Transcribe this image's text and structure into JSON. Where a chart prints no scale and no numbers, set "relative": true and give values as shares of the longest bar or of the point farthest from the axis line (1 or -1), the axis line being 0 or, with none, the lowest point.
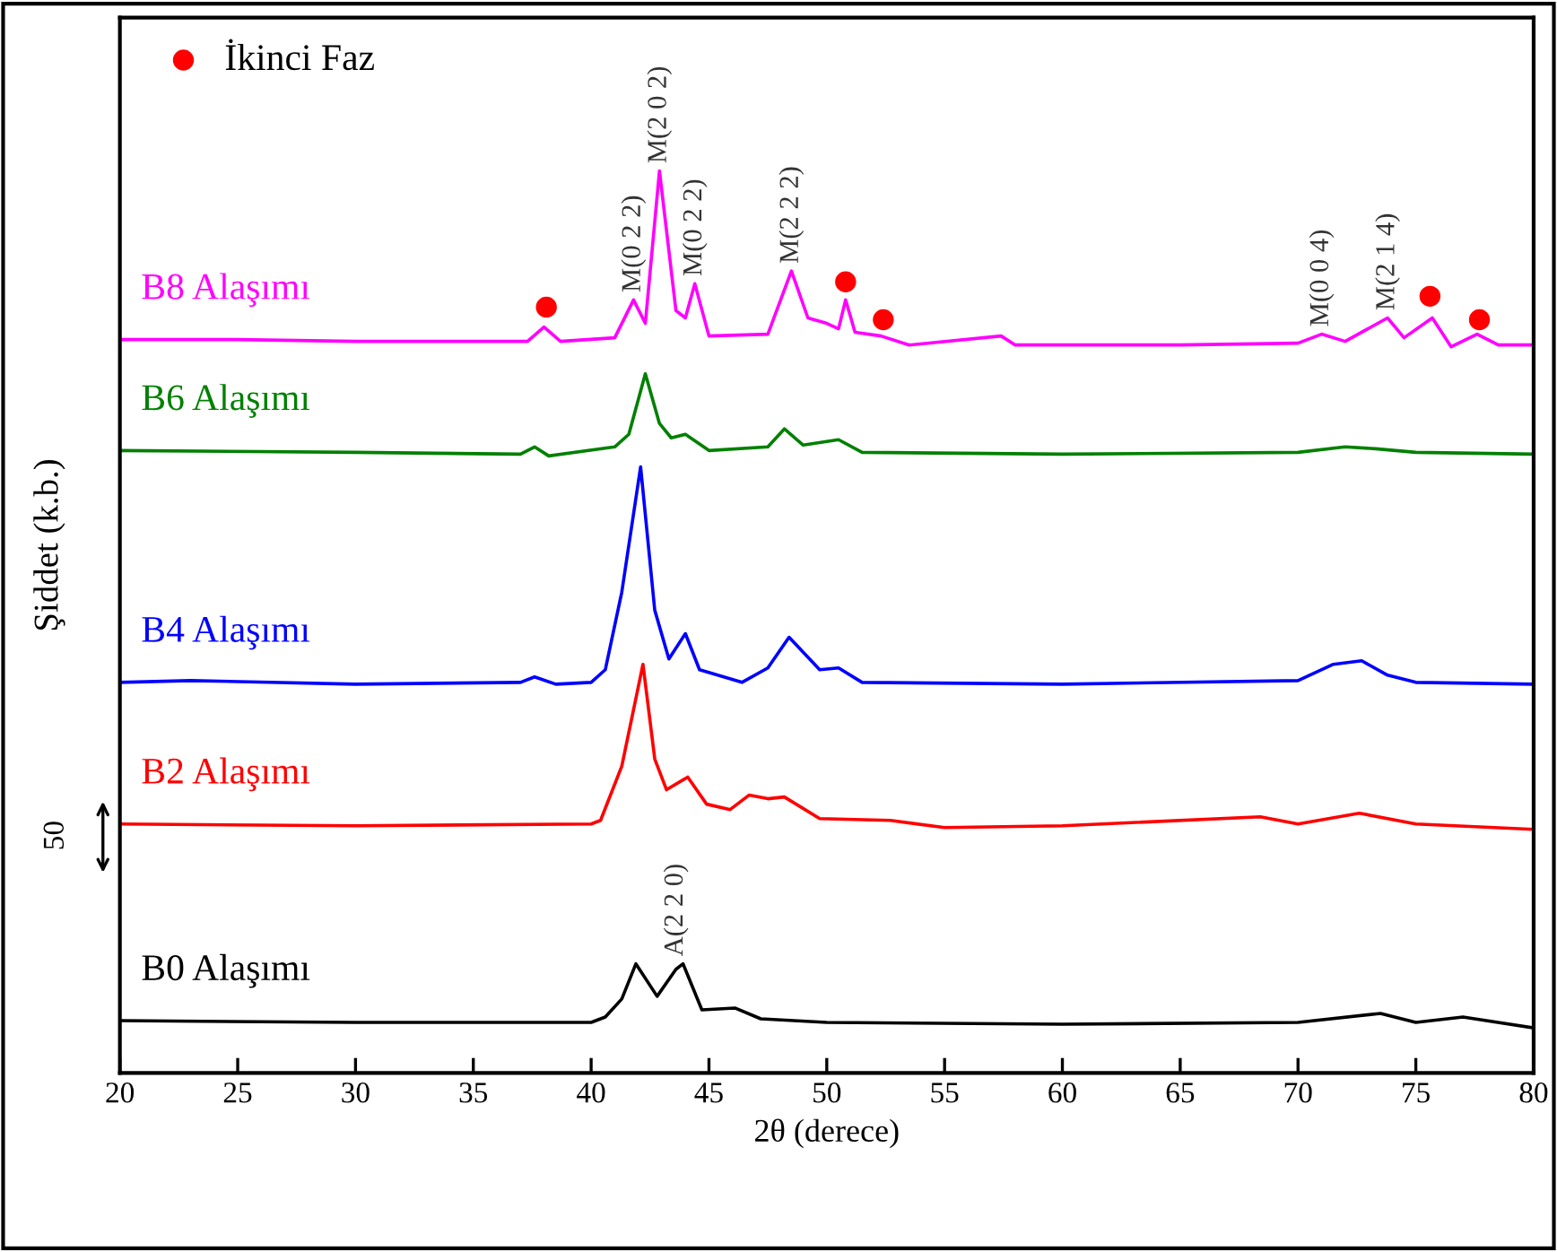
{
  "chart_data": {
    "type": "line",
    "relative": true,
    "xlabel": "2θ (derece)",
    "ylabel": "Şiddet (k.b.)",
    "xlim": [
      20,
      80
    ],
    "xticks": [
      20,
      25,
      30,
      35,
      40,
      45,
      50,
      55,
      60,
      65,
      70,
      75,
      80
    ],
    "grid": false,
    "legend": "top left",
    "series": [
      {
        "name": "B8 Alaşımı",
        "color": "#ff00ff",
        "x": [
          20,
          25,
          30,
          35,
          37.3,
          38.0,
          38.7,
          41.0,
          41.8,
          42.3,
          42.9,
          43.6,
          44.0,
          44.4,
          45.0,
          47.5,
          48.5,
          49.2,
          50.0,
          50.5,
          50.8,
          51.2,
          52.3,
          53.5,
          57.4,
          58,
          65,
          70,
          71.0,
          72.0,
          73.8,
          74.5,
          75.7,
          76.5,
          77.6,
          78.5,
          80
        ],
        "values": [
          0.813,
          0.813,
          0.811,
          0.811,
          0.811,
          0.827,
          0.811,
          0.815,
          0.857,
          0.831,
          1.0,
          0.845,
          0.837,
          0.875,
          0.817,
          0.819,
          0.889,
          0.837,
          0.831,
          0.825,
          0.857,
          0.821,
          0.817,
          0.807,
          0.817,
          0.807,
          0.807,
          0.809,
          0.819,
          0.811,
          0.837,
          0.815,
          0.837,
          0.805,
          0.819,
          0.807,
          0.807
        ]
      },
      {
        "name": "B6 Alaşımı",
        "color": "#008000",
        "x": [
          20,
          30,
          37.0,
          37.6,
          38.2,
          41.0,
          41.6,
          42.3,
          42.9,
          43.4,
          44.0,
          45.0,
          47.5,
          48.2,
          49.0,
          50.5,
          51.5,
          60,
          70,
          72.0,
          73.3,
          75,
          80
        ],
        "values": [
          0.69,
          0.688,
          0.686,
          0.694,
          0.684,
          0.694,
          0.708,
          0.775,
          0.72,
          0.704,
          0.708,
          0.69,
          0.694,
          0.714,
          0.696,
          0.702,
          0.688,
          0.686,
          0.688,
          0.694,
          0.692,
          0.688,
          0.686
        ]
      },
      {
        "name": "B4 Alaşımı",
        "color": "#0000ff",
        "x": [
          20,
          23,
          30,
          37,
          37.6,
          38.5,
          40.0,
          40.6,
          41.3,
          42.1,
          42.7,
          43.3,
          44.0,
          44.6,
          46.4,
          47.5,
          48.4,
          49.7,
          50.5,
          51.5,
          60,
          70,
          71.5,
          72.7,
          73.8,
          75,
          80
        ],
        "values": [
          0.433,
          0.435,
          0.431,
          0.433,
          0.439,
          0.431,
          0.433,
          0.447,
          0.533,
          0.672,
          0.513,
          0.459,
          0.487,
          0.447,
          0.433,
          0.449,
          0.483,
          0.447,
          0.449,
          0.433,
          0.431,
          0.435,
          0.453,
          0.457,
          0.441,
          0.433,
          0.431
        ]
      },
      {
        "name": "B2 Alaşımı",
        "color": "#ff0000",
        "x": [
          20,
          30,
          40.0,
          40.4,
          41.3,
          42.2,
          42.7,
          43.2,
          44.1,
          44.9,
          45.9,
          46.7,
          47.5,
          48.2,
          49.7,
          52.7,
          55,
          60,
          68.4,
          70,
          72.6,
          75,
          80
        ],
        "values": [
          0.276,
          0.274,
          0.276,
          0.28,
          0.34,
          0.453,
          0.348,
          0.314,
          0.328,
          0.298,
          0.292,
          0.308,
          0.304,
          0.306,
          0.282,
          0.28,
          0.272,
          0.274,
          0.284,
          0.276,
          0.288,
          0.276,
          0.27
        ]
      },
      {
        "name": "B0 Alaşımı",
        "color": "#000000",
        "x": [
          20,
          30,
          40.0,
          40.6,
          41.3,
          41.9,
          42.8,
          43.6,
          43.9,
          44.7,
          46.1,
          47.2,
          50,
          60,
          70,
          73.5,
          75,
          77,
          80
        ],
        "values": [
          0.058,
          0.056,
          0.056,
          0.062,
          0.082,
          0.121,
          0.085,
          0.115,
          0.121,
          0.07,
          0.072,
          0.06,
          0.056,
          0.054,
          0.056,
          0.066,
          0.056,
          0.062,
          0.05
        ]
      },
      {
        "name": "İkinci Faz",
        "type": "scatter",
        "marker": "circle",
        "color": "#ff0000",
        "x": [
          38.1,
          50.8,
          52.4,
          75.6,
          77.7
        ],
        "values": [
          0.849,
          0.877,
          0.835,
          0.861,
          0.835
        ]
      }
    ],
    "annotations": [
      {
        "text": "M(0 2 2)",
        "x": 41.8,
        "y": 0.857
      },
      {
        "text": "M(2 0 2)",
        "x": 42.9,
        "y": 1.0
      },
      {
        "text": "M(0 2 2)",
        "x": 44.4,
        "y": 0.875
      },
      {
        "text": "M(2 2 2)",
        "x": 48.5,
        "y": 0.889
      },
      {
        "text": "M(0 0 4)",
        "x": 71.0,
        "y": 0.819
      },
      {
        "text": "M(2 1 4)",
        "x": 73.8,
        "y": 0.837
      },
      {
        "text": "A(2 2 0)",
        "x": 43.6,
        "y": 0.121
      },
      "50"
    ]
  }
}
